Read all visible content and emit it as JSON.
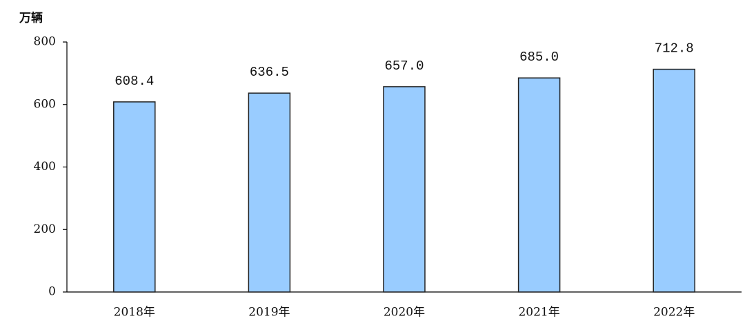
{
  "chart_data": {
    "type": "bar",
    "y_label": "万辆",
    "categories": [
      "2018年",
      "2019年",
      "2020年",
      "2021年",
      "2022年"
    ],
    "values": [
      608.4,
      636.5,
      657.0,
      685.0,
      712.8
    ],
    "value_labels": [
      "608.4",
      "636.5",
      "657.0",
      "685.0",
      "712.8"
    ],
    "color": "#99ccff",
    "ylim": [
      0,
      800
    ],
    "yticks": [
      0,
      200,
      400,
      600,
      800
    ],
    "grid": false
  }
}
